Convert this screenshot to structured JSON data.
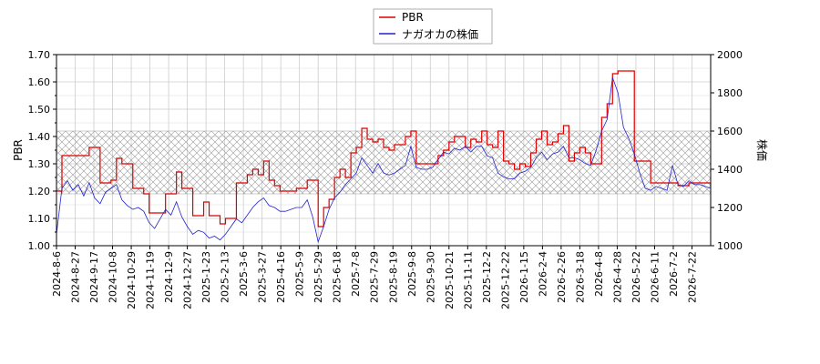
{
  "chart_data": {
    "type": "line",
    "title": "",
    "legend": {
      "placement": "top-center",
      "entries": [
        {
          "label": "PBR",
          "color": "#dd0000"
        },
        {
          "label": "ナガオカの株価",
          "color": "#2222cc"
        }
      ]
    },
    "x": {
      "tick_labels": [
        "2024-8-6",
        "2024-8-27",
        "2024-9-17",
        "2024-10-8",
        "2024-10-29",
        "2024-11-19",
        "2024-12-9",
        "2024-12-27",
        "2025-1-23",
        "2025-2-13",
        "2025-3-6",
        "2025-3-27",
        "2025-4-16",
        "2025-5-9",
        "2025-5-29",
        "2025-6-18",
        "2025-7-8",
        "2025-7-29",
        "2025-8-19",
        "2025-9-8",
        "2025-9-30",
        "2025-10-21",
        "2025-11-11",
        "2025-12-2",
        "2025-12-22",
        "2026-1-15",
        "2026-2-4",
        "2026-2-26",
        "2026-3-18",
        "2026-4-8",
        "2026-4-28",
        "2026-5-22",
        "2026-6-11",
        "2026-7-2",
        "2026-7-22"
      ]
    },
    "y_left": {
      "label": "PBR",
      "range": [
        1.0,
        1.7
      ],
      "ticks": [
        "1.00",
        "1.10",
        "1.20",
        "1.30",
        "1.40",
        "1.50",
        "1.60",
        "1.70"
      ]
    },
    "y_right": {
      "label": "株価",
      "range": [
        1000,
        2000
      ],
      "ticks": [
        "1000",
        "1200",
        "1400",
        "1600",
        "1800",
        "2000"
      ]
    },
    "grid": true,
    "band": {
      "axis": "left",
      "from": 1.19,
      "to": 1.42,
      "pattern": "crosshatch"
    },
    "series": [
      {
        "name": "PBR",
        "axis": "left",
        "color": "#dd0000",
        "points": [
          [
            0,
            1.2
          ],
          [
            1,
            1.33
          ],
          [
            6,
            1.36
          ],
          [
            8,
            1.23
          ],
          [
            10,
            1.24
          ],
          [
            11,
            1.32
          ],
          [
            12,
            1.3
          ],
          [
            14,
            1.21
          ],
          [
            16,
            1.19
          ],
          [
            17,
            1.12
          ],
          [
            20,
            1.19
          ],
          [
            22,
            1.27
          ],
          [
            23,
            1.21
          ],
          [
            25,
            1.11
          ],
          [
            27,
            1.16
          ],
          [
            28,
            1.11
          ],
          [
            30,
            1.08
          ],
          [
            31,
            1.1
          ],
          [
            33,
            1.23
          ],
          [
            35,
            1.26
          ],
          [
            36,
            1.28
          ],
          [
            37,
            1.26
          ],
          [
            38,
            1.31
          ],
          [
            39,
            1.24
          ],
          [
            40,
            1.22
          ],
          [
            41,
            1.2
          ],
          [
            44,
            1.21
          ],
          [
            46,
            1.24
          ],
          [
            48,
            1.07
          ],
          [
            49,
            1.14
          ],
          [
            50,
            1.17
          ],
          [
            51,
            1.25
          ],
          [
            52,
            1.28
          ],
          [
            53,
            1.25
          ],
          [
            54,
            1.34
          ],
          [
            55,
            1.36
          ],
          [
            56,
            1.43
          ],
          [
            57,
            1.39
          ],
          [
            58,
            1.38
          ],
          [
            59,
            1.39
          ],
          [
            60,
            1.36
          ],
          [
            61,
            1.35
          ],
          [
            62,
            1.37
          ],
          [
            64,
            1.4
          ],
          [
            65,
            1.42
          ],
          [
            66,
            1.3
          ],
          [
            70,
            1.33
          ],
          [
            71,
            1.35
          ],
          [
            72,
            1.38
          ],
          [
            73,
            1.4
          ],
          [
            75,
            1.36
          ],
          [
            76,
            1.39
          ],
          [
            77,
            1.38
          ],
          [
            78,
            1.42
          ],
          [
            79,
            1.37
          ],
          [
            80,
            1.36
          ],
          [
            81,
            1.42
          ],
          [
            82,
            1.31
          ],
          [
            83,
            1.3
          ],
          [
            84,
            1.28
          ],
          [
            85,
            1.3
          ],
          [
            86,
            1.29
          ],
          [
            87,
            1.34
          ],
          [
            88,
            1.39
          ],
          [
            89,
            1.42
          ],
          [
            90,
            1.37
          ],
          [
            91,
            1.38
          ],
          [
            92,
            1.41
          ],
          [
            93,
            1.44
          ],
          [
            94,
            1.31
          ],
          [
            95,
            1.34
          ],
          [
            96,
            1.36
          ],
          [
            97,
            1.34
          ],
          [
            98,
            1.3
          ],
          [
            99,
            1.3
          ],
          [
            100,
            1.47
          ],
          [
            101,
            1.52
          ],
          [
            102,
            1.63
          ],
          [
            103,
            1.64
          ],
          [
            105,
            1.64
          ],
          [
            106,
            1.31
          ],
          [
            108,
            1.31
          ],
          [
            109,
            1.23
          ],
          [
            114,
            1.22
          ],
          [
            116,
            1.23
          ],
          [
            118,
            1.23
          ],
          [
            120,
            1.22
          ]
        ]
      },
      {
        "name": "ナガオカの株価",
        "axis": "right",
        "color": "#2222cc",
        "points": [
          [
            0,
            1060
          ],
          [
            1,
            1300
          ],
          [
            2,
            1340
          ],
          [
            3,
            1290
          ],
          [
            4,
            1320
          ],
          [
            5,
            1260
          ],
          [
            6,
            1330
          ],
          [
            7,
            1250
          ],
          [
            8,
            1220
          ],
          [
            9,
            1280
          ],
          [
            10,
            1300
          ],
          [
            11,
            1320
          ],
          [
            12,
            1240
          ],
          [
            13,
            1210
          ],
          [
            14,
            1190
          ],
          [
            15,
            1200
          ],
          [
            16,
            1180
          ],
          [
            17,
            1120
          ],
          [
            18,
            1090
          ],
          [
            19,
            1140
          ],
          [
            20,
            1190
          ],
          [
            21,
            1160
          ],
          [
            22,
            1230
          ],
          [
            23,
            1150
          ],
          [
            24,
            1100
          ],
          [
            25,
            1060
          ],
          [
            26,
            1080
          ],
          [
            27,
            1070
          ],
          [
            28,
            1040
          ],
          [
            29,
            1050
          ],
          [
            30,
            1030
          ],
          [
            31,
            1060
          ],
          [
            32,
            1100
          ],
          [
            33,
            1140
          ],
          [
            34,
            1120
          ],
          [
            35,
            1160
          ],
          [
            36,
            1200
          ],
          [
            37,
            1230
          ],
          [
            38,
            1250
          ],
          [
            39,
            1210
          ],
          [
            40,
            1200
          ],
          [
            41,
            1180
          ],
          [
            42,
            1180
          ],
          [
            43,
            1190
          ],
          [
            44,
            1200
          ],
          [
            45,
            1200
          ],
          [
            46,
            1240
          ],
          [
            47,
            1150
          ],
          [
            48,
            1020
          ],
          [
            49,
            1100
          ],
          [
            50,
            1190
          ],
          [
            51,
            1250
          ],
          [
            52,
            1280
          ],
          [
            53,
            1320
          ],
          [
            54,
            1350
          ],
          [
            55,
            1380
          ],
          [
            56,
            1460
          ],
          [
            57,
            1420
          ],
          [
            58,
            1380
          ],
          [
            59,
            1430
          ],
          [
            60,
            1380
          ],
          [
            61,
            1370
          ],
          [
            62,
            1380
          ],
          [
            63,
            1400
          ],
          [
            64,
            1420
          ],
          [
            65,
            1520
          ],
          [
            66,
            1410
          ],
          [
            67,
            1400
          ],
          [
            68,
            1400
          ],
          [
            69,
            1410
          ],
          [
            70,
            1450
          ],
          [
            71,
            1490
          ],
          [
            72,
            1480
          ],
          [
            73,
            1510
          ],
          [
            74,
            1500
          ],
          [
            75,
            1520
          ],
          [
            76,
            1490
          ],
          [
            77,
            1520
          ],
          [
            78,
            1520
          ],
          [
            79,
            1470
          ],
          [
            80,
            1460
          ],
          [
            81,
            1380
          ],
          [
            82,
            1360
          ],
          [
            83,
            1350
          ],
          [
            84,
            1350
          ],
          [
            85,
            1380
          ],
          [
            86,
            1390
          ],
          [
            87,
            1410
          ],
          [
            88,
            1460
          ],
          [
            89,
            1490
          ],
          [
            90,
            1450
          ],
          [
            91,
            1480
          ],
          [
            92,
            1490
          ],
          [
            93,
            1520
          ],
          [
            94,
            1460
          ],
          [
            95,
            1460
          ],
          [
            96,
            1450
          ],
          [
            97,
            1430
          ],
          [
            98,
            1420
          ],
          [
            99,
            1500
          ],
          [
            100,
            1600
          ],
          [
            101,
            1660
          ],
          [
            102,
            1880
          ],
          [
            103,
            1800
          ],
          [
            104,
            1620
          ],
          [
            105,
            1560
          ],
          [
            106,
            1480
          ],
          [
            107,
            1380
          ],
          [
            108,
            1300
          ],
          [
            109,
            1290
          ],
          [
            110,
            1310
          ],
          [
            111,
            1300
          ],
          [
            112,
            1290
          ],
          [
            113,
            1420
          ],
          [
            114,
            1320
          ],
          [
            115,
            1310
          ],
          [
            116,
            1340
          ],
          [
            117,
            1320
          ],
          [
            118,
            1320
          ],
          [
            119,
            1310
          ],
          [
            120,
            1300
          ]
        ]
      }
    ]
  }
}
